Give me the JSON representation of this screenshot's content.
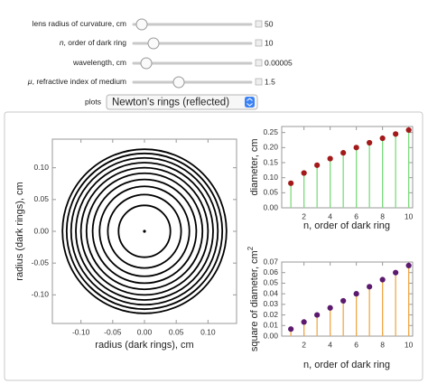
{
  "controls": [
    {
      "label": {
        "symbol": "",
        "text": "lens radius of curvature, cm"
      },
      "value": 50
    },
    {
      "label": {
        "symbol": "n",
        "text": ", order of dark ring"
      },
      "value": 10
    },
    {
      "label": {
        "symbol": "",
        "text": "wavelength, cm"
      },
      "value": 5e-05
    },
    {
      "label": {
        "symbol": "μ",
        "text": ", refractive index of medium"
      },
      "value": 1.5
    }
  ],
  "plots": {
    "label": "plots",
    "value": "Newton's rings (reflected)"
  },
  "chart_data": [
    {
      "type": "rings",
      "xlabel": "radius (dark rings), cm",
      "ylabel": "radius (dark rings), cm",
      "values": [
        0,
        0.0408,
        0.0577,
        0.0707,
        0.0816,
        0.0913,
        0.1,
        0.108,
        0.1155,
        0.1225,
        0.1291
      ],
      "color": "#000000",
      "xlim": [
        -0.145,
        0.145
      ],
      "ylim": [
        -0.145,
        0.145
      ],
      "xticks": [
        {
          "value": -0.1,
          "label": "-0.10"
        },
        -0.05,
        {
          "value": 0,
          "label": "0.00"
        },
        0.05,
        {
          "value": 0.1,
          "label": "0.10"
        }
      ],
      "yticks": [
        {
          "value": -0.1,
          "label": "-0.10"
        },
        -0.05,
        {
          "value": 0,
          "label": "0.00"
        },
        0.05,
        {
          "value": 0.1,
          "label": "0.10"
        }
      ]
    },
    {
      "type": "stem",
      "xlabel": "n, order of dark ring",
      "ylabel": "diameter, cm",
      "x": [
        1,
        2,
        3,
        4,
        5,
        6,
        7,
        8,
        9,
        10
      ],
      "values": [
        0.0816,
        0.1155,
        0.1414,
        0.1633,
        0.1826,
        0.2,
        0.216,
        0.2309,
        0.2449,
        0.2582
      ],
      "color": "#a31a1a",
      "stem_color": "#7ddc7d",
      "xlim": [
        0.3,
        10.3
      ],
      "ylim": [
        0,
        0.27
      ],
      "xticks": [
        2,
        4,
        6,
        8,
        10
      ],
      "yticks": [
        {
          "value": 0,
          "label": "0.00"
        },
        0.05,
        {
          "value": 0.1,
          "label": "0.10"
        },
        0.15,
        {
          "value": 0.2,
          "label": "0.20"
        },
        0.25
      ]
    },
    {
      "type": "stem",
      "xlabel": "n, order of dark ring",
      "ylabel": {
        "text": "square of diameter, cm",
        "sup": "2"
      },
      "x": [
        1,
        2,
        3,
        4,
        5,
        6,
        7,
        8,
        9,
        10
      ],
      "values": [
        0.00667,
        0.01333,
        0.02,
        0.02667,
        0.03333,
        0.04,
        0.04667,
        0.05333,
        0.06,
        0.06667
      ],
      "color": "#5b1a6e",
      "stem_color": "#f0a848",
      "xlim": [
        0.3,
        10.3
      ],
      "ylim": [
        0,
        0.07
      ],
      "xticks": [
        2,
        4,
        6,
        8,
        10
      ],
      "yticks": [
        {
          "value": 0,
          "label": "0.00"
        },
        0.01,
        0.02,
        0.03,
        0.04,
        0.05,
        0.06,
        0.07
      ]
    }
  ]
}
